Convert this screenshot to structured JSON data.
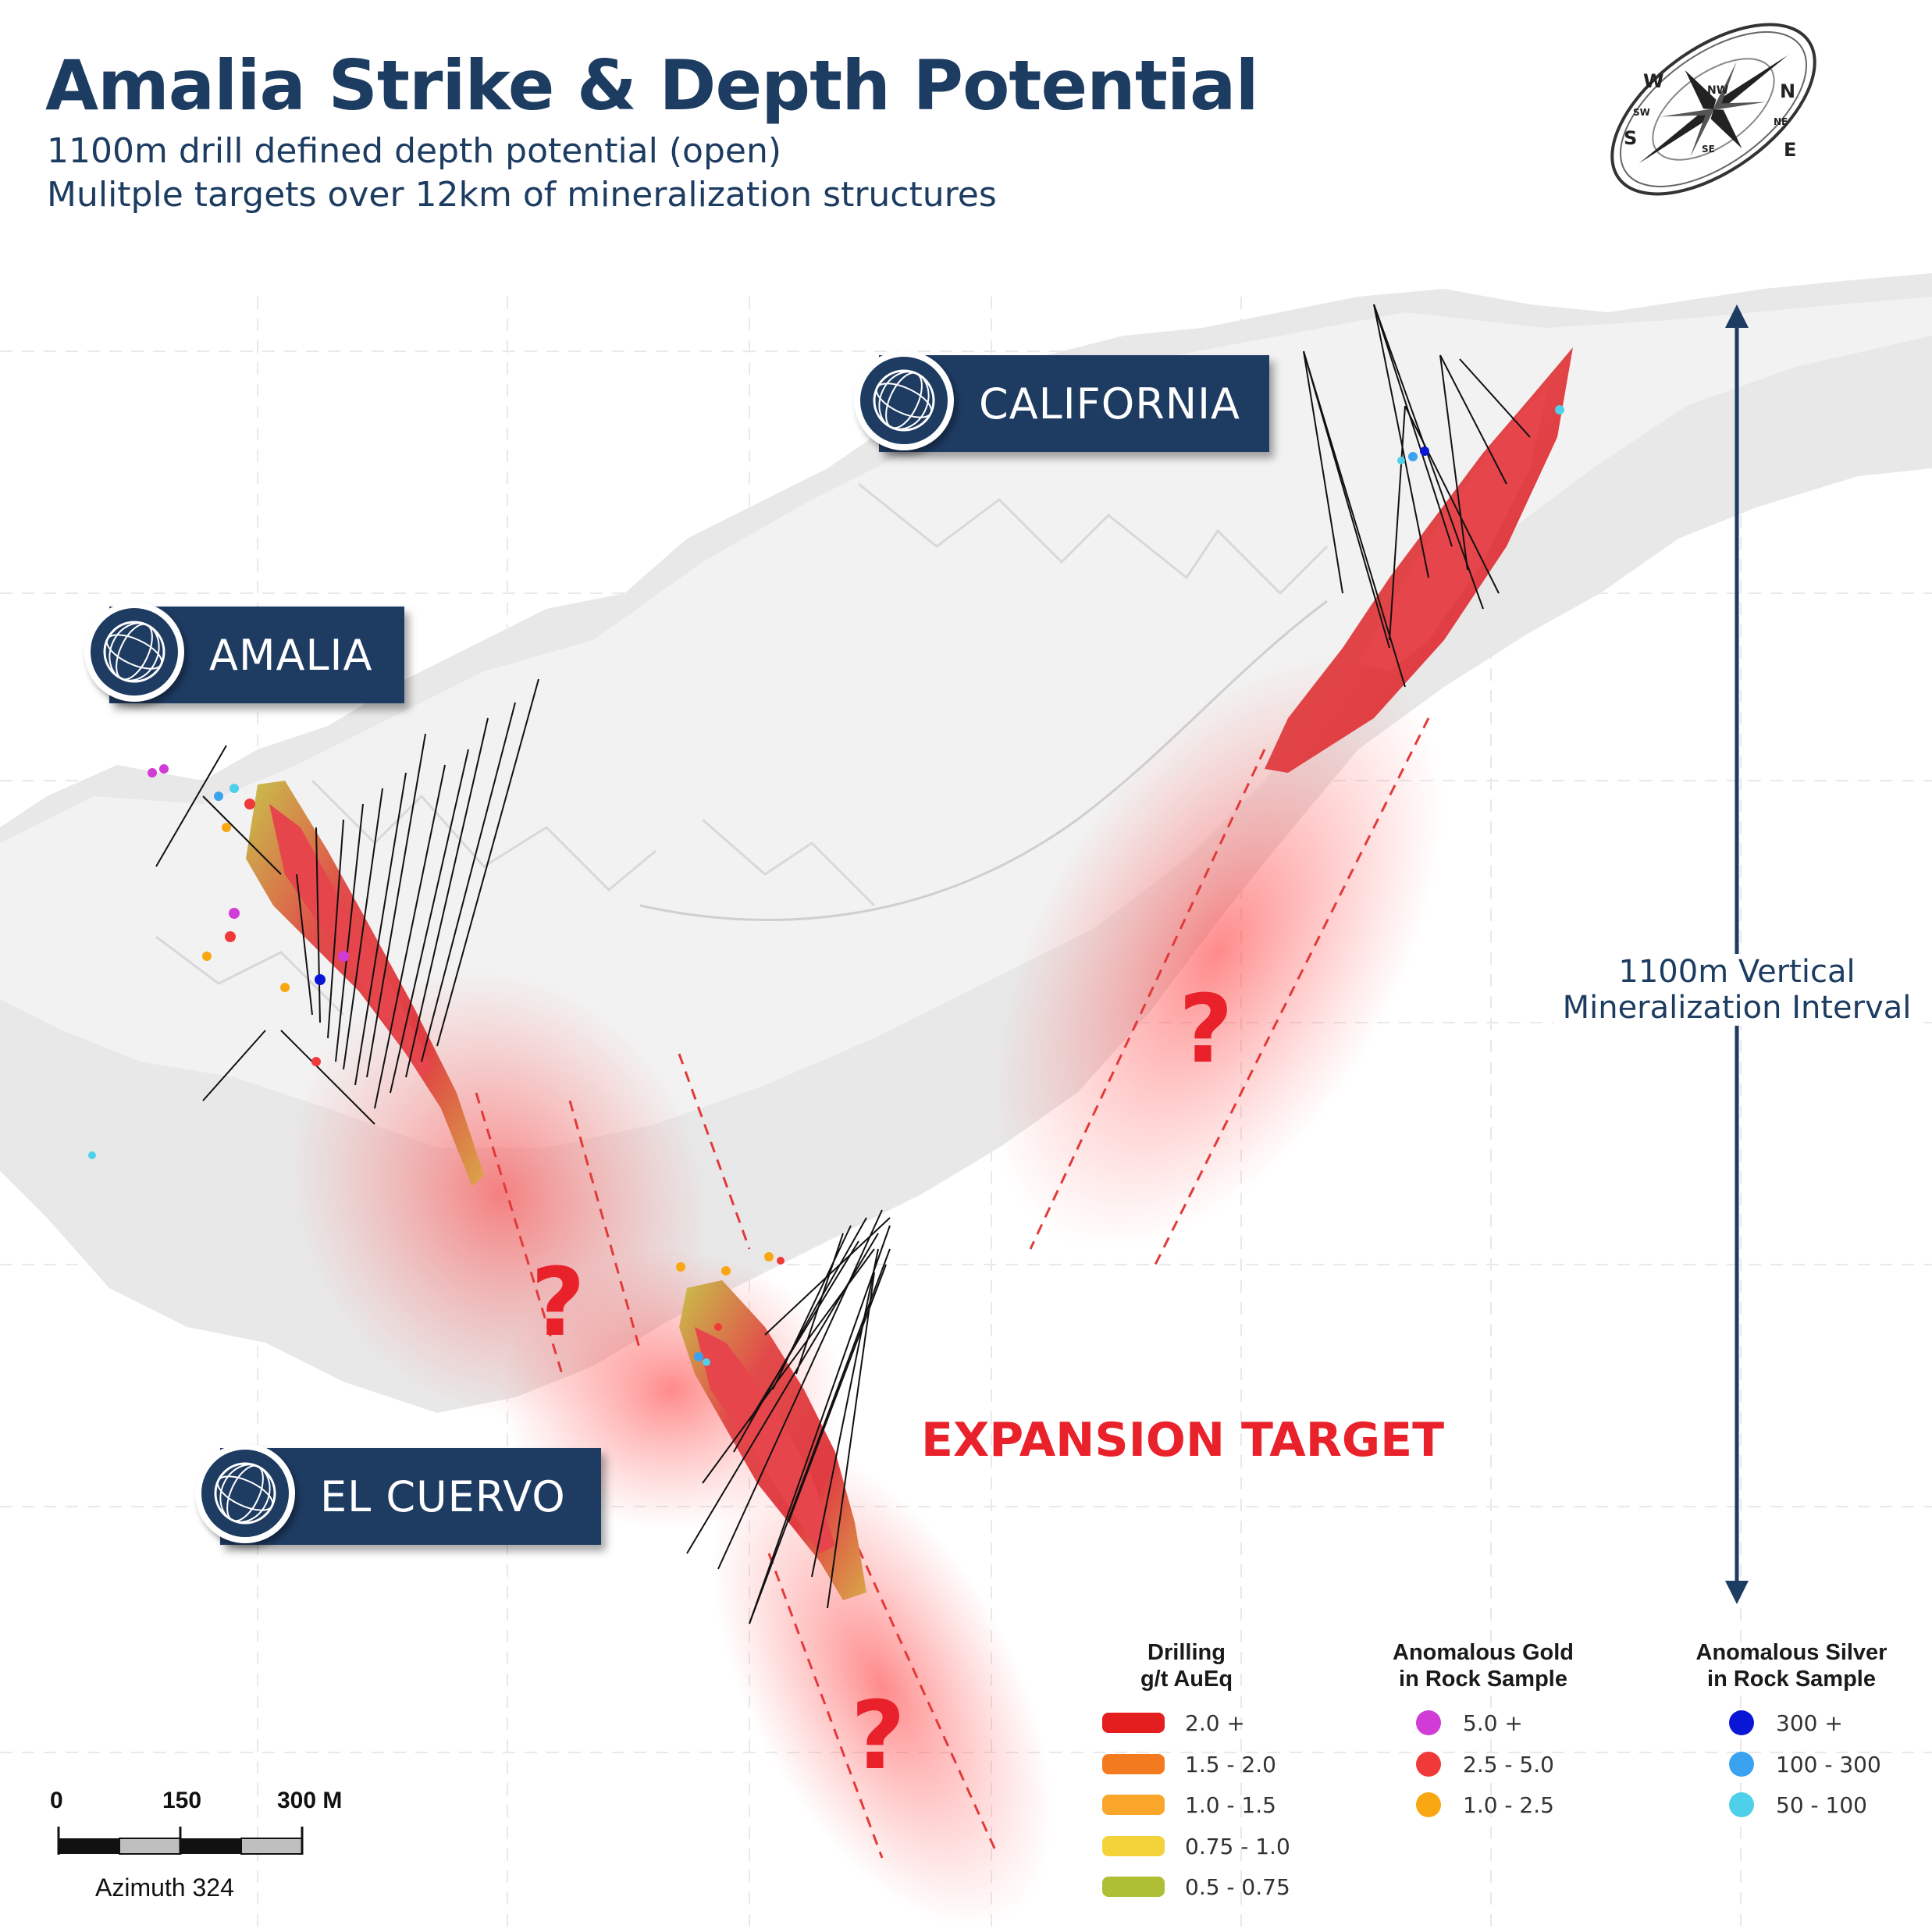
{
  "title": "Amalia Strike & Depth Potential",
  "subtitle_lines": [
    "1100m drill defined depth potential (open)",
    "Mulitple targets over 12km of mineralization structures"
  ],
  "compass": {
    "icon": "compass-rose-icon",
    "letters": [
      "N",
      "NW",
      "W",
      "SW",
      "S",
      "SE",
      "E",
      "NE"
    ]
  },
  "deposits": [
    {
      "name": "AMALIA",
      "icon": "globe-icon"
    },
    {
      "name": "CALIFORNIA",
      "icon": "globe-icon"
    },
    {
      "name": "EL CUERVO",
      "icon": "globe-icon"
    }
  ],
  "question_mark": "?",
  "expansion_label": "EXPANSION TARGET",
  "vertical_interval": {
    "line1": "1100m Vertical",
    "line2": "Mineralization Interval",
    "meters": 1100
  },
  "legend": {
    "drilling": {
      "title_line1": "Drilling",
      "title_line2": "g/t AuEq",
      "items": [
        {
          "label": "2.0 +",
          "color": "#e41e1e"
        },
        {
          "label": "1.5 - 2.0",
          "color": "#f47a1f"
        },
        {
          "label": "1.0 - 1.5",
          "color": "#f9a62b"
        },
        {
          "label": "0.75 - 1.0",
          "color": "#f4d23a"
        },
        {
          "label": "0.5 - 0.75",
          "color": "#aebf36"
        }
      ]
    },
    "gold": {
      "title_line1": "Anomalous Gold",
      "title_line2": "in Rock Sample",
      "items": [
        {
          "label": "5.0 +",
          "color": "#d13bd6"
        },
        {
          "label": "2.5 - 5.0",
          "color": "#f03a3a"
        },
        {
          "label": "1.0 - 2.5",
          "color": "#f8a712"
        }
      ]
    },
    "silver": {
      "title_line1": "Anomalous Silver",
      "title_line2": "in Rock Sample",
      "items": [
        {
          "label": "300 +",
          "color": "#0a16d6"
        },
        {
          "label": "100 - 300",
          "color": "#3ba2f0"
        },
        {
          "label": "50 - 100",
          "color": "#4fd0ea"
        }
      ]
    }
  },
  "scale_bar": {
    "labels": [
      "0",
      "150",
      "300 M"
    ],
    "azimuth": "Azimuth 324"
  },
  "colors": {
    "navy": "#1e3b62",
    "target_red": "#e8212a",
    "terrain": "#e6e6e6"
  }
}
